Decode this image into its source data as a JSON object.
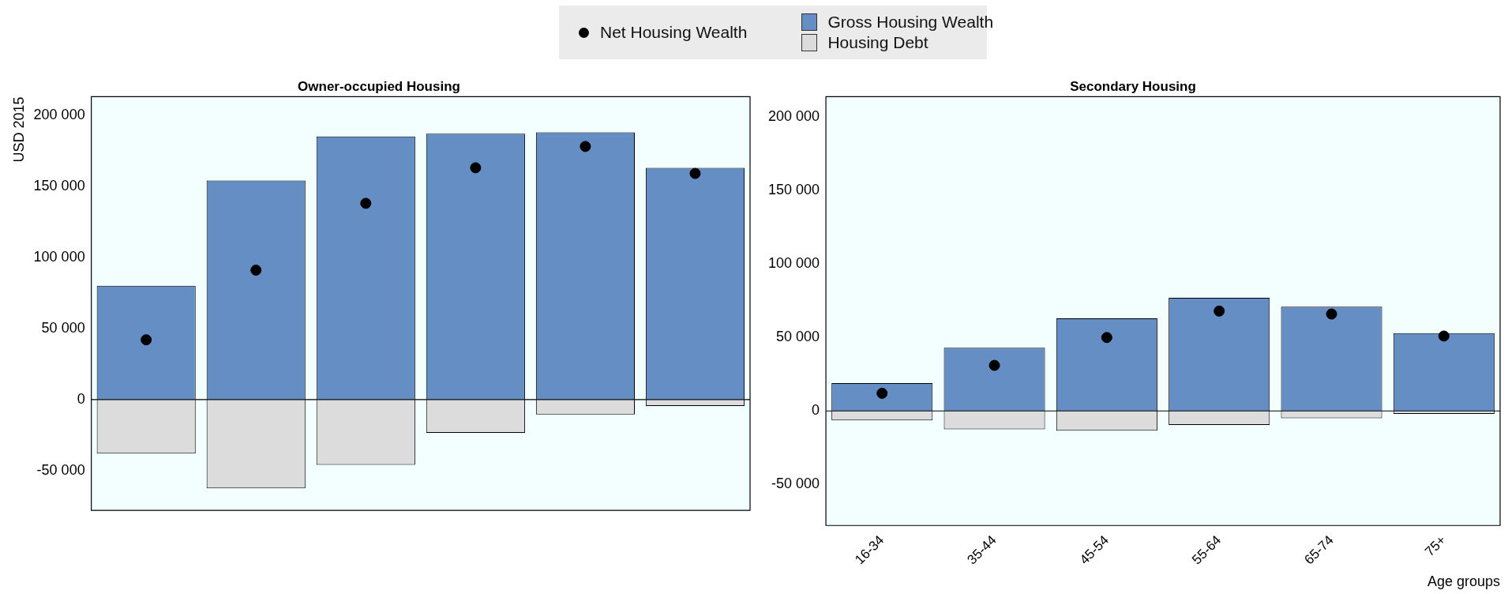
{
  "chart_data": [
    {
      "type": "bar",
      "title": "Owner-occupied Housing",
      "ylabel": "USD 2015",
      "categories": [
        null,
        null,
        null,
        null,
        null,
        null
      ],
      "stacked": true,
      "legend": "top",
      "grid": false,
      "tick_labels": "y",
      "marker": "circle",
      "series": [
        {
          "name": "Gross Housing Wealth",
          "color": "#658ec4",
          "values": [
            80000,
            154000,
            185000,
            187000,
            188000,
            163000
          ]
        },
        {
          "name": "Housing Debt",
          "color": "#dcdcdc",
          "values": [
            -38000,
            -62500,
            -46000,
            -23500,
            -10500,
            -4500
          ]
        },
        {
          "name": "Net Housing Wealth",
          "type": "scatter",
          "color": "#000000",
          "values": [
            42000,
            91000,
            138000,
            163000,
            178000,
            159000
          ]
        }
      ],
      "ref_lines": [
        {
          "axis": "y",
          "value": 0,
          "color": "#000000"
        }
      ],
      "ylim": [
        -78000,
        213000
      ],
      "yticks": [
        {
          "value": -50000,
          "label": "-50 000"
        },
        0,
        {
          "value": 50000,
          "label": "50 000"
        },
        {
          "value": 100000,
          "label": "100 000"
        },
        {
          "value": 150000,
          "label": "150 000"
        },
        {
          "value": 200000,
          "label": "200 000"
        }
      ]
    },
    {
      "type": "bar",
      "title": "Secondary Housing",
      "xlabel": "Age groups",
      "categories": [
        "16-34",
        "35-44",
        "45-54",
        "55-64",
        "65-74",
        "75+"
      ],
      "stacked": true,
      "grid": false,
      "marker": "circle",
      "series": [
        {
          "color": "#658ec4",
          "values": [
            19000,
            43000,
            63000,
            77000,
            71000,
            53000
          ]
        },
        {
          "color": "#dcdcdc",
          "values": [
            -6500,
            -12500,
            -13500,
            -9500,
            -5000,
            -2000
          ]
        },
        {
          "type": "scatter",
          "color": "#000000",
          "x": [
            "16-34",
            "35-44",
            "45-54",
            "55-64",
            "65-74",
            "75+"
          ],
          "values": [
            12000,
            31000,
            50000,
            68000,
            66000,
            51000
          ]
        }
      ],
      "ref_lines": [
        {
          "axis": "y",
          "value": 0,
          "color": "#000000"
        }
      ],
      "ylim": [
        -78000,
        214000
      ],
      "yticks": [
        {
          "value": -50000,
          "label": "-50 000"
        },
        0,
        {
          "value": 50000,
          "label": "50 000"
        },
        {
          "value": 100000,
          "label": "100 000"
        },
        {
          "value": 150000,
          "label": "150 000"
        },
        {
          "value": 200000,
          "label": "200 000"
        }
      ]
    }
  ]
}
